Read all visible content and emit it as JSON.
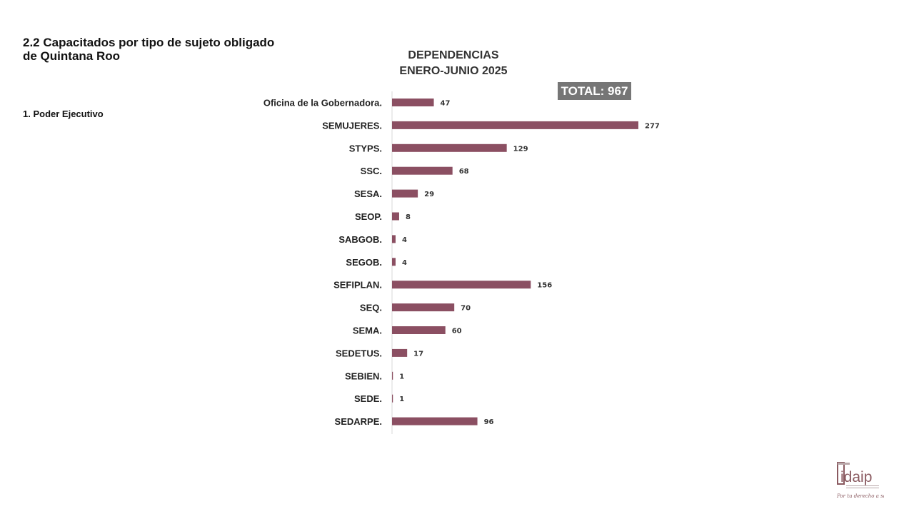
{
  "page": {
    "title": "2.2 Capacitados por tipo de sujeto obligado de Quintana Roo",
    "section": "1. Poder Ejecutivo"
  },
  "total_badge": "TOTAL: 967",
  "logo": {
    "text": "idaip",
    "tagline": "Por tu derecho a saber",
    "color": "#8a5a60"
  },
  "chart_data": {
    "type": "bar",
    "orientation": "horizontal",
    "title": "DEPENDENCIAS",
    "subtitle": "ENERO-JUNIO 2025",
    "categories": [
      "Oficina de la Gobernadora.",
      "SEMUJERES.",
      "STYPS.",
      "SSC.",
      "SESA.",
      "SEOP.",
      "SABGOB.",
      "SEGOB.",
      "SEFIPLAN.",
      "SEQ.",
      "SEMA.",
      "SEDETUS.",
      "SEBIEN.",
      "SEDE.",
      "SEDARPE."
    ],
    "values": [
      47,
      277,
      129,
      68,
      29,
      8,
      4,
      4,
      156,
      70,
      60,
      17,
      1,
      1,
      96
    ],
    "bar_color": "#8b4f62",
    "data_labels": true,
    "grid": false,
    "xlim": [
      0,
      300
    ]
  }
}
